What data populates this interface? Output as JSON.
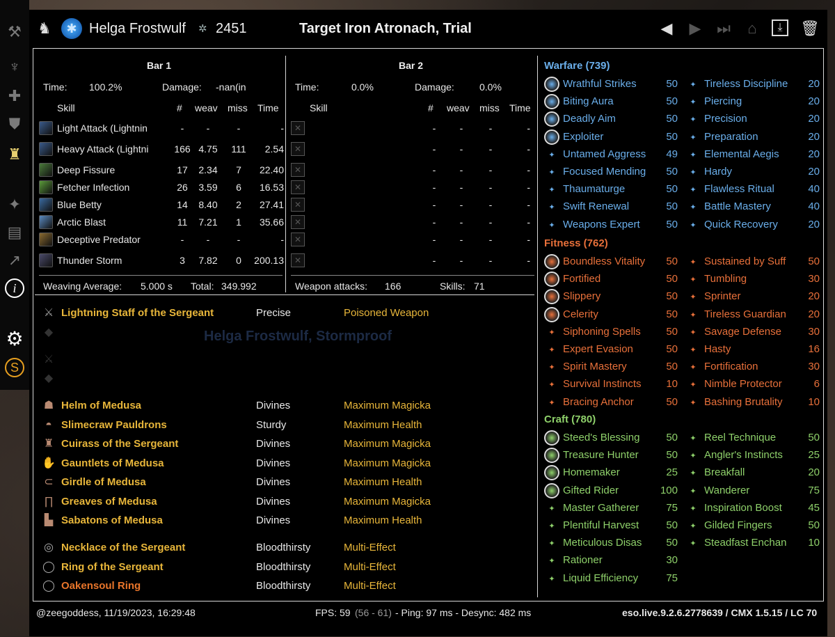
{
  "header": {
    "name": "Helga Frostwulf",
    "cp": "2451",
    "target": "Target Iron Atronach, Trial"
  },
  "bar1": {
    "title": "Bar 1",
    "time_label": "Time:",
    "time": "100.2%",
    "damage_label": "Damage:",
    "damage": "-nan(in",
    "cols": {
      "skill": "Skill",
      "num": "#",
      "weav": "weav",
      "miss": "miss",
      "time": "Time"
    },
    "rows": [
      {
        "name": "Light Attack (Lightnin",
        "n": "-",
        "w": "-",
        "m": "-",
        "t": "-",
        "c": "#3a5a8a"
      },
      {
        "name": "Heavy Attack (Lightni",
        "n": "166",
        "w": "4.75",
        "m": "111",
        "t": "2.54",
        "c": "#3a5a8a"
      },
      {
        "name": "Deep Fissure",
        "n": "17",
        "w": "2.34",
        "m": "7",
        "t": "22.40",
        "c": "#4a7a3a"
      },
      {
        "name": "Fetcher Infection",
        "n": "26",
        "w": "3.59",
        "m": "6",
        "t": "16.53",
        "c": "#5a9a3a"
      },
      {
        "name": "Blue Betty",
        "n": "14",
        "w": "8.40",
        "m": "2",
        "t": "27.41",
        "c": "#3a6aa0"
      },
      {
        "name": "Arctic Blast",
        "n": "11",
        "w": "7.21",
        "m": "1",
        "t": "35.66",
        "c": "#5a8ac0"
      },
      {
        "name": "Deceptive Predator",
        "n": "-",
        "w": "-",
        "m": "-",
        "t": "-",
        "c": "#8a6a30"
      },
      {
        "name": "Thunder Storm",
        "n": "3",
        "w": "7.82",
        "m": "0",
        "t": "200.13",
        "c": "#4a4a6a"
      }
    ],
    "weaving_label": "Weaving Average:",
    "weaving": "5.000 s",
    "total_label": "Total:",
    "total": "349.992"
  },
  "bar2": {
    "title": "Bar 2",
    "time_label": "Time:",
    "time": "0.0%",
    "damage_label": "Damage:",
    "damage": "0.0%",
    "cols": {
      "skill": "Skill",
      "num": "#",
      "weav": "weav",
      "miss": "miss",
      "time": "Time"
    },
    "dash": "-",
    "weapon_label": "Weapon attacks:",
    "weapon": "166",
    "skills_label": "Skills:",
    "skills": "71"
  },
  "equipment": {
    "weapon": {
      "name": "Lightning Staff of the Sergeant",
      "trait": "Precise",
      "ench": "Poisoned Weapon"
    },
    "watermark": "Helga Frostwulf, Stormproof",
    "armor": [
      {
        "name": "Helm of Medusa",
        "trait": "Divines",
        "ench": "Maximum Magicka",
        "icon": "helm-icon"
      },
      {
        "name": "Slimecraw Pauldrons",
        "trait": "Sturdy",
        "ench": "Maximum Health",
        "icon": "shoulder-icon"
      },
      {
        "name": "Cuirass of the Sergeant",
        "trait": "Divines",
        "ench": "Maximum Magicka",
        "icon": "chest-icon"
      },
      {
        "name": "Gauntlets of Medusa",
        "trait": "Divines",
        "ench": "Maximum Magicka",
        "icon": "gloves-icon"
      },
      {
        "name": "Girdle of Medusa",
        "trait": "Divines",
        "ench": "Maximum Health",
        "icon": "belt-icon"
      },
      {
        "name": "Greaves of Medusa",
        "trait": "Divines",
        "ench": "Maximum Magicka",
        "icon": "legs-icon"
      },
      {
        "name": "Sabatons of Medusa",
        "trait": "Divines",
        "ench": "Maximum Health",
        "icon": "boots-icon"
      }
    ],
    "jewelry": [
      {
        "name": "Necklace of the Sergeant",
        "trait": "Bloodthirsty",
        "ench": "Multi-Effect",
        "icon": "necklace-icon",
        "color": "gold"
      },
      {
        "name": "Ring of the Sergeant",
        "trait": "Bloodthirsty",
        "ench": "Multi-Effect",
        "icon": "ring-icon",
        "color": "gold"
      },
      {
        "name": "Oakensoul Ring",
        "trait": "Bloodthirsty",
        "ench": "Multi-Effect",
        "icon": "ring-icon",
        "color": "orange"
      }
    ]
  },
  "cp": {
    "warfare": {
      "title": "Warfare (739)",
      "color": "#6aaeea",
      "left": [
        [
          "Wrathful Strikes",
          "50",
          1
        ],
        [
          "Biting Aura",
          "50",
          1
        ],
        [
          "Deadly Aim",
          "50",
          1
        ],
        [
          "Exploiter",
          "50",
          1
        ],
        [
          "Untamed Aggress",
          "49",
          0
        ],
        [
          "Focused Mending",
          "50",
          0
        ],
        [
          "Thaumaturge",
          "50",
          0
        ],
        [
          "Swift Renewal",
          "50",
          0
        ],
        [
          "Weapons Expert",
          "50",
          0
        ]
      ],
      "right": [
        [
          "Tireless Discipline",
          "20"
        ],
        [
          "Piercing",
          "20"
        ],
        [
          "Precision",
          "20"
        ],
        [
          "Preparation",
          "20"
        ],
        [
          "Elemental Aegis",
          "20"
        ],
        [
          "Hardy",
          "20"
        ],
        [
          "Flawless Ritual",
          "40"
        ],
        [
          "Battle Mastery",
          "40"
        ],
        [
          "Quick Recovery",
          "20"
        ]
      ]
    },
    "fitness": {
      "title": "Fitness (762)",
      "color": "#e8703a",
      "left": [
        [
          "Boundless Vitality",
          "50",
          1
        ],
        [
          "Fortified",
          "50",
          1
        ],
        [
          "Slippery",
          "50",
          1
        ],
        [
          "Celerity",
          "50",
          1
        ],
        [
          "Siphoning Spells",
          "50",
          0
        ],
        [
          "Expert Evasion",
          "50",
          0
        ],
        [
          "Spirit Mastery",
          "50",
          0
        ],
        [
          "Survival Instincts",
          "10",
          0
        ],
        [
          "Bracing Anchor",
          "50",
          0
        ]
      ],
      "right": [
        [
          "Sustained by Suff",
          "50"
        ],
        [
          "Tumbling",
          "30"
        ],
        [
          "Sprinter",
          "20"
        ],
        [
          "Tireless Guardian",
          "20"
        ],
        [
          "Savage Defense",
          "30"
        ],
        [
          "Hasty",
          "16"
        ],
        [
          "Fortification",
          "30"
        ],
        [
          "Nimble Protector",
          "6"
        ],
        [
          "Bashing Brutality",
          "10"
        ]
      ]
    },
    "craft": {
      "title": "Craft (780)",
      "color": "#8ed06a",
      "left": [
        [
          "Steed's Blessing",
          "50",
          1
        ],
        [
          "Treasure Hunter",
          "50",
          1
        ],
        [
          "Homemaker",
          "25",
          1
        ],
        [
          "Gifted Rider",
          "100",
          1
        ],
        [
          "Master Gatherer",
          "75",
          0
        ],
        [
          "Plentiful Harvest",
          "50",
          0
        ],
        [
          "Meticulous Disas",
          "50",
          0
        ],
        [
          "Rationer",
          "30",
          0
        ],
        [
          "Liquid Efficiency",
          "75",
          0
        ]
      ],
      "right": [
        [
          "Reel Technique",
          "50"
        ],
        [
          "Angler's Instincts",
          "25"
        ],
        [
          "Breakfall",
          "20"
        ],
        [
          "Wanderer",
          "75"
        ],
        [
          "Inspiration Boost",
          "45"
        ],
        [
          "Gilded Fingers",
          "50"
        ],
        [
          "Steadfast Enchan",
          "10"
        ]
      ]
    }
  },
  "footer": {
    "user": "@zeegoddess, 11/19/2023, 16:29:48",
    "fps_label": "FPS: 59",
    "fps_range": "(56 - 61)",
    "ping": "- Ping: 97 ms - Desync: 482 ms",
    "version": "eso.live.9.2.6.2778639 / CMX 1.5.15 / LC 70"
  },
  "icons": {
    "back": "prev-icon",
    "fwd": "next-icon",
    "end": "last-icon",
    "cam": "screenshot-icon",
    "save": "save-icon",
    "del": "trash-icon"
  }
}
